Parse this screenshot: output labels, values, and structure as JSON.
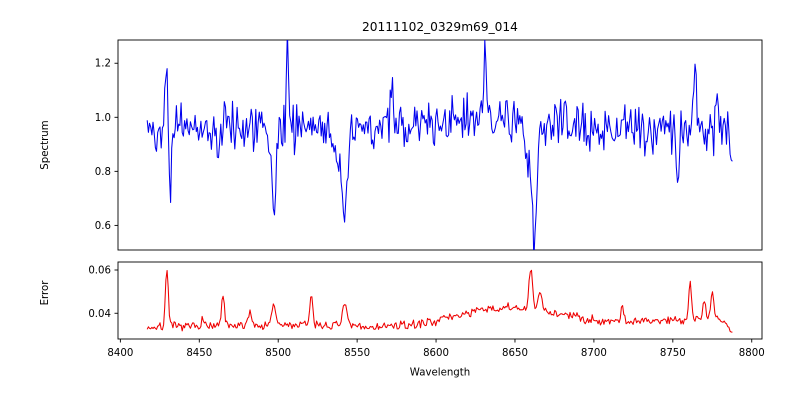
{
  "figure": {
    "title": "20111102_0329m69_014",
    "background": "#ffffff",
    "spine_color": "#000000",
    "text_color": "#000000"
  },
  "chart_data": {
    "type": "line",
    "title": "20111102_0329m69_014",
    "xlabel": "Wavelength",
    "xlim": [
      8398.5,
      8806.5
    ],
    "xticks": [
      {
        "v": 8400,
        "t": "8400"
      },
      {
        "v": 8450,
        "t": "8450"
      },
      {
        "v": 8500,
        "t": "8500"
      },
      {
        "v": 8550,
        "t": "8550"
      },
      {
        "v": 8600,
        "t": "8600"
      },
      {
        "v": 8650,
        "t": "8650"
      },
      {
        "v": 8700,
        "t": "8700"
      },
      {
        "v": 8750,
        "t": "8750"
      },
      {
        "v": 8800,
        "t": "8800"
      }
    ],
    "grid": false,
    "legend": "none",
    "panels": [
      {
        "name": "spectrum-panel",
        "ylabel": "Spectrum",
        "ylim": [
          0.509,
          1.286
        ],
        "yticks": [
          {
            "v": 0.6,
            "t": "0.6"
          },
          {
            "v": 0.8,
            "t": "0.8"
          },
          {
            "v": 1.0,
            "t": "1.0"
          },
          {
            "v": 1.2,
            "t": "1.2"
          }
        ],
        "series": {
          "name": "spectrum",
          "color": "#0000ee",
          "x_start": 8417,
          "x_end": 8788,
          "step": 0.74,
          "baseline": [
            [
              8417,
              0.955
            ],
            [
              8445,
              0.965
            ],
            [
              8470,
              0.97
            ],
            [
              8520,
              0.97
            ],
            [
              8555,
              0.955
            ],
            [
              8600,
              0.98
            ],
            [
              8632,
              1.0
            ],
            [
              8660,
              0.975
            ],
            [
              8700,
              0.96
            ],
            [
              8750,
              0.965
            ],
            [
              8788,
              0.955
            ]
          ],
          "features": [
            {
              "x": 8429.0,
              "amp": 0.27,
              "w": 0.8
            },
            {
              "x": 8431.5,
              "amp": -0.2,
              "w": 1.0
            },
            {
              "x": 8462.0,
              "amp": -0.13,
              "w": 1.2
            },
            {
              "x": 8494.0,
              "amp": -0.1,
              "w": 2.0
            },
            {
              "x": 8497.5,
              "amp": -0.33,
              "w": 1.2
            },
            {
              "x": 8506.0,
              "amp": 0.28,
              "w": 0.8
            },
            {
              "x": 8539.0,
              "amp": -0.15,
              "w": 3.0
            },
            {
              "x": 8542.5,
              "amp": -0.33,
              "w": 1.3
            },
            {
              "x": 8572.0,
              "amp": 0.14,
              "w": 0.8
            },
            {
              "x": 8631.0,
              "amp": 0.22,
              "w": 0.8
            },
            {
              "x": 8658.5,
              "amp": -0.15,
              "w": 2.5
            },
            {
              "x": 8662.5,
              "amp": -0.42,
              "w": 1.3
            },
            {
              "x": 8753.0,
              "amp": -0.24,
              "w": 1.0
            },
            {
              "x": 8764.0,
              "amp": 0.25,
              "w": 0.8
            },
            {
              "x": 8778.0,
              "amp": 0.15,
              "w": 0.8
            },
            {
              "x": 8787.0,
              "amp": -0.09,
              "w": 1.0
            }
          ],
          "noise_sigma": 0.042,
          "seed": 42
        }
      },
      {
        "name": "error-panel",
        "ylabel": "Error",
        "ylim": [
          0.0281,
          0.0637
        ],
        "yticks": [
          {
            "v": 0.04,
            "t": "0.04"
          },
          {
            "v": 0.06,
            "t": "0.06"
          }
        ],
        "series": {
          "name": "error",
          "color": "#ee0000",
          "x_start": 8417,
          "x_end": 8788,
          "step": 0.74,
          "baseline": [
            [
              8417,
              0.0335
            ],
            [
              8445,
              0.0338
            ],
            [
              8470,
              0.0338
            ],
            [
              8500,
              0.0345
            ],
            [
              8530,
              0.0345
            ],
            [
              8555,
              0.0335
            ],
            [
              8585,
              0.0345
            ],
            [
              8605,
              0.0375
            ],
            [
              8625,
              0.041
            ],
            [
              8645,
              0.0425
            ],
            [
              8662,
              0.042
            ],
            [
              8680,
              0.0395
            ],
            [
              8700,
              0.0368
            ],
            [
              8725,
              0.0362
            ],
            [
              8745,
              0.0368
            ],
            [
              8762,
              0.0375
            ],
            [
              8778,
              0.0378
            ],
            [
              8785,
              0.034
            ],
            [
              8788,
              0.0315
            ]
          ],
          "features": [
            {
              "x": 8429.5,
              "amp": 0.028,
              "w": 0.9
            },
            {
              "x": 8452.0,
              "amp": 0.004,
              "w": 1.0
            },
            {
              "x": 8465.0,
              "amp": 0.015,
              "w": 0.9
            },
            {
              "x": 8482.0,
              "amp": 0.007,
              "w": 1.2
            },
            {
              "x": 8497.0,
              "amp": 0.008,
              "w": 1.5
            },
            {
              "x": 8521.0,
              "amp": 0.015,
              "w": 0.9
            },
            {
              "x": 8542.0,
              "amp": 0.012,
              "w": 1.2
            },
            {
              "x": 8660.0,
              "amp": 0.019,
              "w": 1.0
            },
            {
              "x": 8666.0,
              "amp": 0.008,
              "w": 1.2
            },
            {
              "x": 8718.0,
              "amp": 0.007,
              "w": 0.9
            },
            {
              "x": 8761.0,
              "amp": 0.016,
              "w": 0.9
            },
            {
              "x": 8770.0,
              "amp": 0.008,
              "w": 1.0
            },
            {
              "x": 8775.0,
              "amp": 0.012,
              "w": 0.9
            }
          ],
          "noise_sigma": 0.001,
          "seed": 7
        }
      }
    ]
  }
}
